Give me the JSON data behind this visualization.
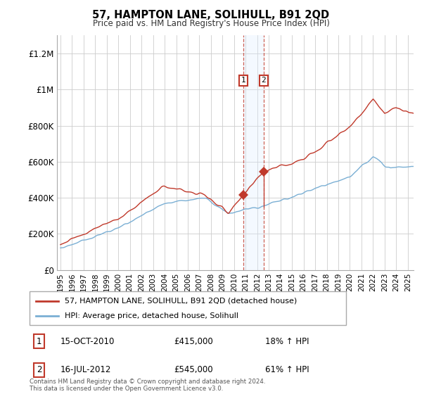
{
  "title": "57, HAMPTON LANE, SOLIHULL, B91 2QD",
  "subtitle": "Price paid vs. HM Land Registry's House Price Index (HPI)",
  "legend_line1": "57, HAMPTON LANE, SOLIHULL, B91 2QD (detached house)",
  "legend_line2": "HPI: Average price, detached house, Solihull",
  "footer": "Contains HM Land Registry data © Crown copyright and database right 2024.\nThis data is licensed under the Open Government Licence v3.0.",
  "sale1_label": "1",
  "sale1_date": "15-OCT-2010",
  "sale1_price": "£415,000",
  "sale1_hpi": "18% ↑ HPI",
  "sale2_label": "2",
  "sale2_date": "16-JUL-2012",
  "sale2_price": "£545,000",
  "sale2_hpi": "61% ↑ HPI",
  "hpi_color": "#7aafd4",
  "price_color": "#c0392b",
  "highlight_color": "#ddeeff",
  "sale1_x": 2010.79,
  "sale2_x": 2012.54,
  "sale1_y": 415000,
  "sale2_y": 545000,
  "ylim": [
    0,
    1300000
  ],
  "xlim_start": 1994.7,
  "xlim_end": 2025.5,
  "yticks": [
    0,
    200000,
    400000,
    600000,
    800000,
    1000000,
    1200000
  ],
  "ytick_labels": [
    "£0",
    "£200K",
    "£400K",
    "£600K",
    "£800K",
    "£1M",
    "£1.2M"
  ],
  "xticks": [
    1995,
    1996,
    1997,
    1998,
    1999,
    2000,
    2001,
    2002,
    2003,
    2004,
    2005,
    2006,
    2007,
    2008,
    2009,
    2010,
    2011,
    2012,
    2013,
    2014,
    2015,
    2016,
    2017,
    2018,
    2019,
    2020,
    2021,
    2022,
    2023,
    2024,
    2025
  ]
}
